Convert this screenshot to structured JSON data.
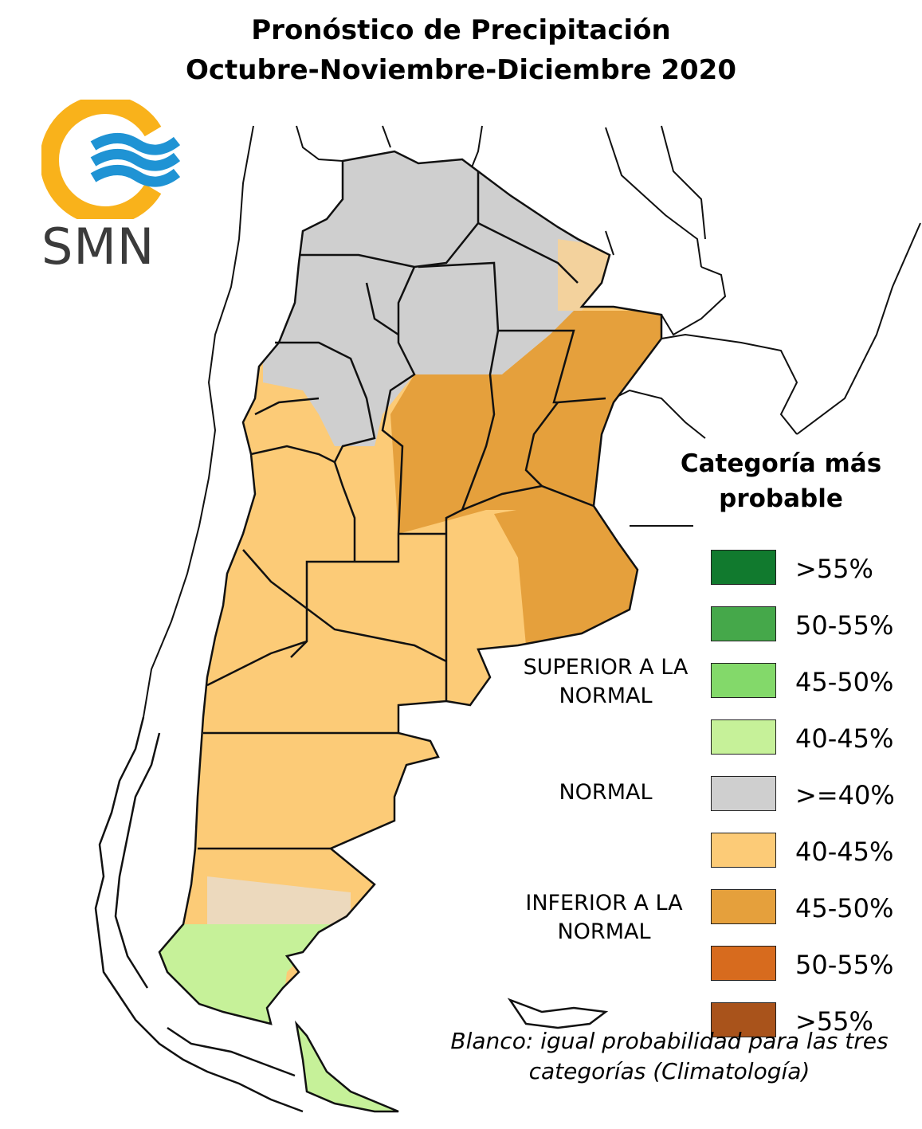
{
  "title": {
    "line1": "Pronóstico de Precipitación",
    "line2": "Octubre-Noviembre-Diciembre 2020"
  },
  "logo": {
    "text": "SMN",
    "colors": {
      "ring": "#f9b21b",
      "waves": "#1f93d4",
      "text": "#3b3b3b"
    }
  },
  "legend": {
    "title": "Categoría más probable",
    "groups": {
      "superior": "SUPERIOR A LA NORMAL",
      "normal": "NORMAL",
      "inferior": "INFERIOR A LA NORMAL"
    },
    "items": [
      {
        "label": ">55%",
        "color": "#117a2e",
        "group": "superior"
      },
      {
        "label": "50-55%",
        "color": "#45a84a",
        "group": "superior"
      },
      {
        "label": "45-50%",
        "color": "#83d96a",
        "group": "superior"
      },
      {
        "label": "40-45%",
        "color": "#c6f199",
        "group": "superior"
      },
      {
        "label": ">=40%",
        "color": "#cfcfcf",
        "group": "normal"
      },
      {
        "label": "40-45%",
        "color": "#fccb77",
        "group": "inferior"
      },
      {
        "label": "45-50%",
        "color": "#e5a03c",
        "group": "inferior"
      },
      {
        "label": "50-55%",
        "color": "#d76b1e",
        "group": "inferior"
      },
      {
        "label": ">55%",
        "color": "#a9531b",
        "group": "inferior"
      }
    ]
  },
  "footnote": "Blanco: igual probabilidad para las tres categorías (Climatología)",
  "map": {
    "region_colors": {
      "normal": "#cfcfcf",
      "below_40_45": "#fccb77",
      "below_45_50": "#e5a03c",
      "above_40_45": "#c6f199",
      "equal": "#e6e6e6",
      "transition": "#ecd9bd"
    }
  }
}
